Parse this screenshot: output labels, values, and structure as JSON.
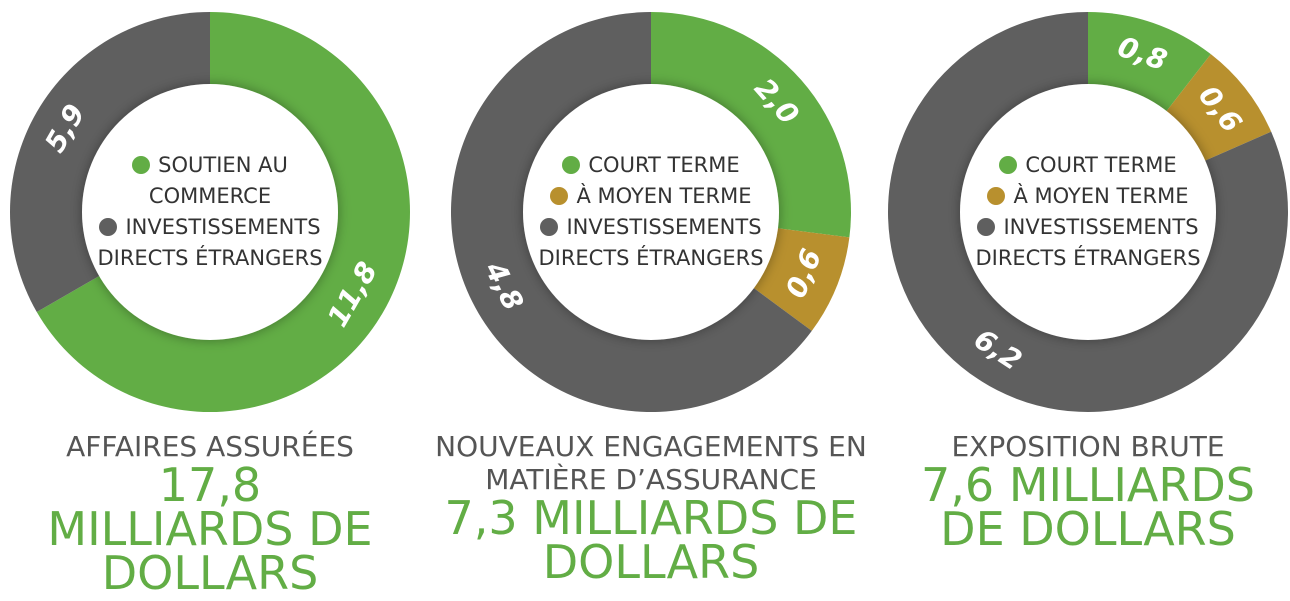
{
  "chart_data": [
    {
      "type": "pie",
      "title": "AFFAIRES ASSURÉES",
      "subtitle": "17,8 MILLIARDS DE DOLLARS",
      "categories": [
        "SOUTIEN AU COMMERCE",
        "INVESTISSEMENTS DIRECTS ÉTRANGERS"
      ],
      "values": [
        11.8,
        5.9
      ],
      "value_labels": [
        "11,8",
        "5,9"
      ],
      "colors": [
        "#62ad45",
        "#5f5f5f"
      ]
    },
    {
      "type": "pie",
      "title": "NOUVEAUX ENGAGEMENTS EN MATIÈRE D’ASSURANCE",
      "subtitle": "7,3 MILLIARDS DE DOLLARS",
      "categories": [
        "COURT TERME",
        "À MOYEN TERME",
        "INVESTISSEMENTS DIRECTS ÉTRANGERS"
      ],
      "values": [
        2.0,
        0.6,
        4.8
      ],
      "value_labels": [
        "2,0",
        "0,6",
        "4,8"
      ],
      "colors": [
        "#62ad45",
        "#b8902e",
        "#5f5f5f"
      ]
    },
    {
      "type": "pie",
      "title": "EXPOSITION BRUTE",
      "subtitle": "7,6 MILLIARDS DE DOLLARS",
      "categories": [
        "COURT TERME",
        "À MOYEN TERME",
        "INVESTISSEMENTS DIRECTS ÉTRANGERS"
      ],
      "values": [
        0.8,
        0.6,
        6.2
      ],
      "value_labels": [
        "0,8",
        "0,6",
        "6,2"
      ],
      "colors": [
        "#62ad45",
        "#b8902e",
        "#5f5f5f"
      ]
    }
  ]
}
